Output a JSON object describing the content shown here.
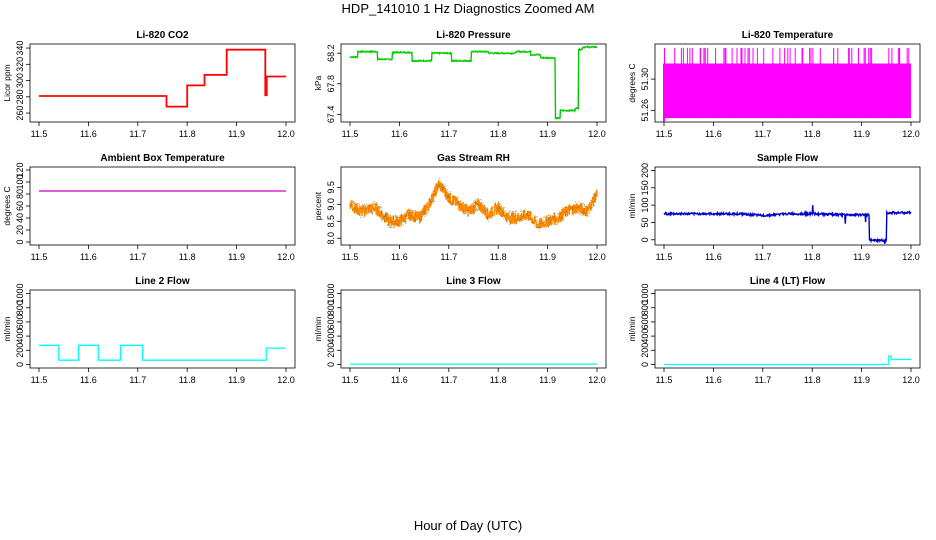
{
  "title": "HDP_141010  1 Hz Diagnostics Zoomed AM",
  "xlabel": "Hour of Day (UTC)",
  "chart_data": [
    {
      "type": "line",
      "title": "Li-820 CO2",
      "ylabel": "Licor ppm",
      "color": "#ff0000",
      "xlim": [
        11.5,
        12.0
      ],
      "xticks": [
        "11.5",
        "11.6",
        "11.7",
        "11.8",
        "11.9",
        "12.0"
      ],
      "ylim": [
        249,
        345
      ],
      "yticks": [
        "260",
        "280",
        "300",
        "320",
        "340"
      ],
      "series": [
        {
          "name": "CO2",
          "x": [
            11.5,
            11.758,
            11.758,
            11.8,
            11.8,
            11.835,
            11.835,
            11.88,
            11.88,
            11.958,
            11.958,
            11.961,
            11.961,
            12.0
          ],
          "y": [
            281,
            281,
            268,
            268,
            294,
            294,
            307,
            307,
            338,
            338,
            282,
            282,
            305,
            305
          ]
        }
      ]
    },
    {
      "type": "line",
      "title": "Li-820 Pressure",
      "ylabel": "kPa",
      "color": "#00cc00",
      "xlim": [
        11.5,
        12.0
      ],
      "xticks": [
        "11.5",
        "11.6",
        "11.7",
        "11.8",
        "11.9",
        "12.0"
      ],
      "ylim": [
        67.3,
        68.32
      ],
      "yticks": [
        "67.4",
        "67.8",
        "68.2"
      ],
      "series": [
        {
          "name": "Pressure",
          "x": [
            11.5,
            11.515,
            11.515,
            11.555,
            11.555,
            11.585,
            11.585,
            11.625,
            11.625,
            11.665,
            11.665,
            11.705,
            11.705,
            11.745,
            11.745,
            11.78,
            11.78,
            11.835,
            11.835,
            11.865,
            11.865,
            11.885,
            11.885,
            11.915,
            11.915,
            11.925,
            11.925,
            11.955,
            11.955,
            11.962,
            11.962,
            11.97,
            11.97,
            12.0
          ],
          "y": [
            68.15,
            68.15,
            68.22,
            68.22,
            68.12,
            68.12,
            68.21,
            68.21,
            68.1,
            68.1,
            68.2,
            68.2,
            68.1,
            68.1,
            68.22,
            68.22,
            68.2,
            68.2,
            68.22,
            68.22,
            68.18,
            68.18,
            68.14,
            68.14,
            67.35,
            67.35,
            67.45,
            67.45,
            67.48,
            67.48,
            68.25,
            68.25,
            68.28,
            68.28
          ]
        }
      ]
    },
    {
      "type": "line",
      "title": "Li-820 Temperature",
      "ylabel": "degrees C",
      "color": "#ff00ff",
      "xlim": [
        11.5,
        12.0
      ],
      "xticks": [
        "11.5",
        "11.6",
        "11.7",
        "11.8",
        "11.9",
        "12.0"
      ],
      "ylim": [
        51.245,
        51.345
      ],
      "yticks": [
        "51.26",
        "51.30"
      ],
      "series": [
        {
          "name": "Temperature",
          "band": [
            51.25,
            51.32
          ],
          "spike_top": 51.34
        }
      ]
    },
    {
      "type": "line",
      "title": "Ambient Box Temperature",
      "ylabel": "degrees C",
      "color": "#cc00cc",
      "xlim": [
        11.5,
        12.0
      ],
      "xticks": [
        "11.5",
        "11.6",
        "11.7",
        "11.8",
        "11.9",
        "12.0"
      ],
      "ylim": [
        -5,
        125
      ],
      "yticks": [
        "0",
        "20",
        "40",
        "60",
        "80",
        "100",
        "120"
      ],
      "series": [
        {
          "name": "Ambient",
          "x": [
            11.5,
            12.0
          ],
          "y": [
            85,
            85
          ]
        }
      ]
    },
    {
      "type": "line",
      "title": "Gas Stream RH",
      "ylabel": "percent",
      "color": "#ff8800",
      "xlim": [
        11.5,
        12.0
      ],
      "xticks": [
        "11.5",
        "11.6",
        "11.7",
        "11.8",
        "11.9",
        "12.0"
      ],
      "ylim": [
        7.8,
        10.1
      ],
      "yticks": [
        "8.0",
        "8.5",
        "9.0",
        "9.5"
      ],
      "series": [
        {
          "name": "RH",
          "x": [
            11.5,
            11.52,
            11.55,
            11.58,
            11.6,
            11.62,
            11.64,
            11.66,
            11.68,
            11.7,
            11.72,
            11.74,
            11.76,
            11.78,
            11.8,
            11.82,
            11.84,
            11.86,
            11.88,
            11.9,
            11.92,
            11.94,
            11.96,
            11.98,
            12.0
          ],
          "y": [
            9.0,
            8.8,
            8.9,
            8.5,
            8.5,
            8.7,
            8.6,
            9.0,
            9.6,
            9.2,
            9.0,
            8.8,
            9.0,
            8.7,
            8.9,
            8.6,
            8.6,
            8.7,
            8.4,
            8.5,
            8.6,
            8.8,
            8.9,
            8.8,
            9.3
          ]
        }
      ]
    },
    {
      "type": "line",
      "title": "Sample Flow",
      "ylabel": "ml/min",
      "color": "#0000cc",
      "xlim": [
        11.5,
        12.0
      ],
      "xticks": [
        "11.5",
        "11.6",
        "11.7",
        "11.8",
        "11.9",
        "12.0"
      ],
      "ylim": [
        -15,
        210
      ],
      "yticks": [
        "0",
        "50",
        "100",
        "150",
        "200"
      ],
      "series": [
        {
          "name": "Sample Flow",
          "x": [
            11.5,
            11.6,
            11.65,
            11.7,
            11.75,
            11.8,
            11.86,
            11.915,
            11.915,
            11.95,
            11.95,
            12.0
          ],
          "y": [
            75,
            75,
            75,
            70,
            75,
            75,
            72,
            72,
            -2,
            -2,
            78,
            78
          ]
        }
      ]
    },
    {
      "type": "line",
      "title": "Line 2 Flow",
      "ylabel": "ml/min",
      "color": "#00ffff",
      "xlim": [
        11.5,
        12.0
      ],
      "xticks": [
        "11.5",
        "11.6",
        "11.7",
        "11.8",
        "11.9",
        "12.0"
      ],
      "ylim": [
        -50,
        1050
      ],
      "yticks": [
        "0",
        "200",
        "400",
        "600",
        "800",
        "1000"
      ],
      "series": [
        {
          "name": "Line 2",
          "x": [
            11.5,
            11.54,
            11.54,
            11.58,
            11.58,
            11.62,
            11.62,
            11.665,
            11.665,
            11.71,
            11.71,
            11.96,
            11.96,
            12.0
          ],
          "y": [
            270,
            270,
            60,
            60,
            270,
            270,
            60,
            60,
            270,
            270,
            60,
            60,
            230,
            230
          ]
        }
      ]
    },
    {
      "type": "line",
      "title": "Line 3 Flow",
      "ylabel": "ml/min",
      "color": "#00ffff",
      "xlim": [
        11.5,
        12.0
      ],
      "xticks": [
        "11.5",
        "11.6",
        "11.7",
        "11.8",
        "11.9",
        "12.0"
      ],
      "ylim": [
        -50,
        1050
      ],
      "yticks": [
        "0",
        "200",
        "400",
        "600",
        "800",
        "1000"
      ],
      "series": [
        {
          "name": "Line 3",
          "x": [
            11.5,
            12.0
          ],
          "y": [
            5,
            5
          ]
        }
      ]
    },
    {
      "type": "line",
      "title": "Line 4 (LT) Flow",
      "ylabel": "ml/min",
      "color": "#00ffff",
      "xlim": [
        11.5,
        12.0
      ],
      "xticks": [
        "11.5",
        "11.6",
        "11.7",
        "11.8",
        "11.9",
        "12.0"
      ],
      "ylim": [
        -50,
        1050
      ],
      "yticks": [
        "0",
        "200",
        "400",
        "600",
        "800",
        "1000"
      ],
      "series": [
        {
          "name": "Line 4",
          "x": [
            11.5,
            11.955,
            11.955,
            11.96,
            11.96,
            12.0
          ],
          "y": [
            0,
            0,
            120,
            120,
            70,
            70
          ]
        }
      ]
    }
  ]
}
